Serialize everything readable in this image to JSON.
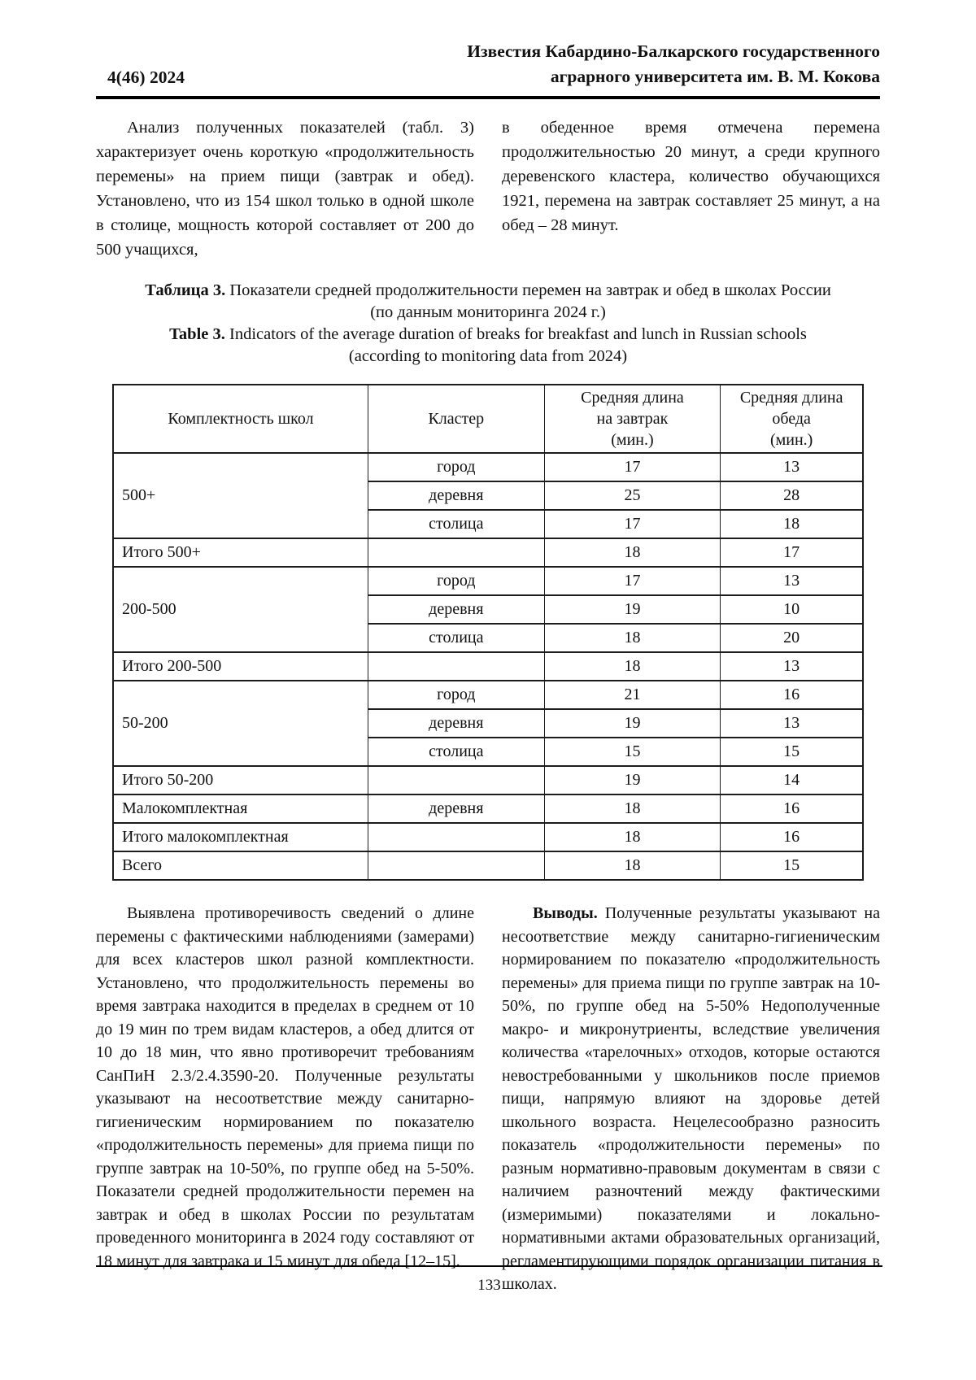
{
  "header": {
    "issue": "4(46) 2024",
    "journal_line1": "Известия Кабардино-Балкарского государственного",
    "journal_line2": "аграрного университета им. В. М. Кокова"
  },
  "intro": {
    "left": "Анализ полученных показателей (табл. 3) характеризует очень короткую «продолжительность перемены» на прием пищи (завтрак и обед). Установлено, что из 154 школ только в одной школе в столице, мощность которой составляет от 200 до 500 учащихся,",
    "right": "в обеденное время отмечена перемена продолжительностью 20 минут, а среди крупного деревенского кластера, количество обучающихся 1921, перемена на завтрак составляет 25 минут, а на обед – 28 минут."
  },
  "caption": {
    "ru_label": "Таблица 3.",
    "ru_text": " Показатели средней продолжительности перемен на завтрак и обед в школах России",
    "ru_sub": "(по данным мониторинга 2024 г.)",
    "en_label": "Table 3.",
    "en_text": " Indicators of the average duration of breaks for breakfast and lunch in Russian schools",
    "en_sub": "(according to monitoring data from 2024)"
  },
  "table": {
    "headers": {
      "col1": "Комплектность школ",
      "col2": "Кластер",
      "col3": "Средняя длина\nна завтрак\n(мин.)",
      "col4": "Средняя длина\nобеда\n(мин.)"
    },
    "rows": [
      {
        "g": "500+",
        "c": "город",
        "b": "17",
        "l": "13"
      },
      {
        "c": "деревня",
        "b": "25",
        "l": "28"
      },
      {
        "c": "столица",
        "b": "17",
        "l": "18"
      },
      {
        "g": "Итого 500+",
        "c": "",
        "b": "18",
        "l": "17"
      },
      {
        "g": "200-500",
        "c": "город",
        "b": "17",
        "l": "13"
      },
      {
        "c": "деревня",
        "b": "19",
        "l": "10"
      },
      {
        "c": "столица",
        "b": "18",
        "l": "20"
      },
      {
        "g": "Итого 200-500",
        "c": "",
        "b": "18",
        "l": "13"
      },
      {
        "g": "50-200",
        "c": "город",
        "b": "21",
        "l": "16"
      },
      {
        "c": "деревня",
        "b": "19",
        "l": "13"
      },
      {
        "c": "столица",
        "b": "15",
        "l": "15"
      },
      {
        "g": "Итого 50-200",
        "c": "",
        "b": "19",
        "l": "14"
      },
      {
        "g": "Малокомплектная",
        "c": "деревня",
        "b": "18",
        "l": "16"
      },
      {
        "g": "Итого малокомплектная",
        "c": "",
        "b": "18",
        "l": "16"
      },
      {
        "g": "Всего",
        "c": "",
        "b": "18",
        "l": "15"
      }
    ]
  },
  "discussion": {
    "left": "Выявлена противоречивость сведений о длине перемены с фактическими наблюдениями (замерами) для всех кластеров школ разной комплектности. Установлено, что продолжительность перемены во время завтрака находится в пределах в среднем от 10 до 19 мин по трем видам кластеров, а обед длится от 10 до 18 мин, что явно противоречит требованиям СанПиН 2.3/2.4.3590-20. Полученные результаты указывают на несоответствие между санитарно-гигиеническим нормированием по показателю «продолжительность перемены» для приема пищи по группе завтрак на 10-50%, по группе обед на 5-50%. Показатели средней продолжительности перемен на завтрак и обед в школах России по результатам проведенного мониторинга в 2024 году составляют от 18 минут для завтрака и 15 минут для обеда [12–15].",
    "conclusions_label": "Выводы.",
    "conclusions_text": " Полученные результаты указывают на несоответствие между санитарно-гигиеническим нормированием по показателю «продолжительность перемены» для приема пищи по группе завтрак на 10-50%, по группе обед на 5-50% Недополученные макро- и микронутриенты, вследствие увеличения количества «тарелочных» отходов, которые остаются невостребованными у школьников после приемов пищи, напрямую влияют на здоровье детей школьного возраста. Нецелесообразно разносить показатель «продолжительности перемены» по разным нормативно-правовым документам в связи с наличием разночтений между фактическими (измеримыми) показателями и локально-нормативными актами образовательных организаций, регламентирующими порядок организации питания в школах."
  },
  "footer": {
    "page_number": "133"
  }
}
